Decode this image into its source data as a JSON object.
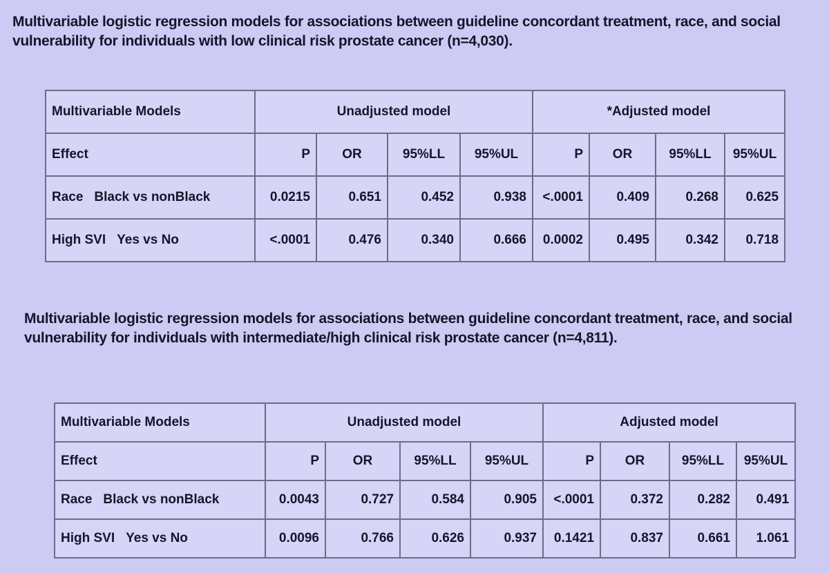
{
  "tables": [
    {
      "caption": "Multivariable logistic regression models for associations between guideline concordant treatment, race, and social vulnerability for individuals with low clinical risk prostate cancer (n=4,030).",
      "header": [
        "Multivariable Models",
        "Unadjusted model",
        "*Adjusted model"
      ],
      "columns": [
        "Effect",
        "P",
        "OR",
        "95%LL",
        "95%UL",
        "P",
        "OR",
        "95%LL",
        "95%UL"
      ],
      "rows": [
        [
          "Race",
          "Black vs nonBlack",
          "0.0215",
          "0.651",
          "0.452",
          "0.938",
          "<.0001",
          "0.409",
          "0.268",
          "0.625"
        ],
        [
          "High SVI",
          "Yes vs No",
          "<.0001",
          "0.476",
          "0.340",
          "0.666",
          "0.0002",
          "0.495",
          "0.342",
          "0.718"
        ]
      ]
    },
    {
      "caption": "Multivariable logistic regression models for associations between guideline concordant treatment, race, and social vulnerability for individuals with intermediate/high clinical risk prostate cancer (n=4,811).",
      "header": [
        "Multivariable Models",
        "Unadjusted model",
        "Adjusted model"
      ],
      "columns": [
        "Effect",
        "P",
        "OR",
        "95%LL",
        "95%UL",
        "P",
        "OR",
        "95%LL",
        "95%UL"
      ],
      "rows": [
        [
          "Race",
          "Black vs nonBlack",
          "0.0043",
          "0.727",
          "0.584",
          "0.905",
          "<.0001",
          "0.372",
          "0.282",
          "0.491"
        ],
        [
          "High SVI",
          "Yes vs No",
          "0.0096",
          "0.766",
          "0.626",
          "0.937",
          "0.1421",
          "0.837",
          "0.661",
          "1.061"
        ]
      ]
    }
  ]
}
